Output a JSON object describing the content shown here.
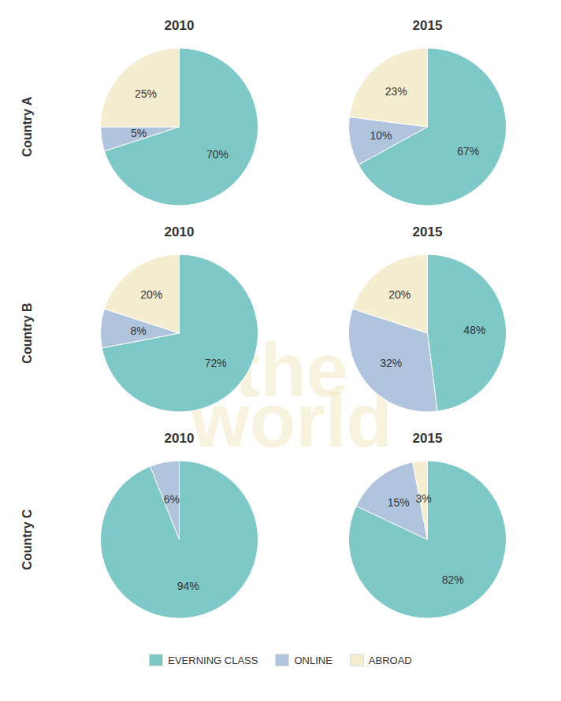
{
  "chart_data": [
    {
      "type": "pie",
      "title": "2010",
      "subtitle": "Country A",
      "categories": [
        "EVERNING CLASS",
        "ONLINE",
        "ABROAD"
      ],
      "values": [
        70,
        5,
        25
      ],
      "value_labels": [
        "70%",
        "5%",
        "25%"
      ],
      "colors": [
        "#7ec8c8",
        "#b0c4de",
        "#f5edd0"
      ],
      "legend": "bottom",
      "data_labels": true,
      "annotations": [
        "the",
        "world"
      ]
    },
    {
      "type": "pie",
      "title": "2015",
      "categories": [
        "EVERNING CLASS",
        "ONLINE",
        "ABROAD"
      ],
      "values": [
        67,
        10,
        23
      ],
      "value_labels": [
        "67%",
        "10%",
        "23%"
      ],
      "colors": [
        "#7ec8c8",
        "#b0c4de",
        "#f5edd0"
      ],
      "legend": "bottom",
      "data_labels": true
    },
    {
      "type": "pie",
      "title": "2010",
      "subtitle": "Country B",
      "categories": [
        "EVERNING CLASS",
        "ONLINE",
        "ABROAD"
      ],
      "values": [
        72,
        8,
        20
      ],
      "value_labels": [
        "72%",
        "8%",
        "20%"
      ],
      "colors": [
        "#7ec8c8",
        "#b0c4de",
        "#f5edd0"
      ],
      "legend": "bottom",
      "data_labels": true
    },
    {
      "type": "pie",
      "title": "2015",
      "categories": [
        "EVERNING CLASS",
        "ONLINE",
        "ABROAD"
      ],
      "values": [
        48,
        32,
        20
      ],
      "value_labels": [
        "48%",
        "32%",
        "20%"
      ],
      "colors": [
        "#7ec8c8",
        "#b0c4de",
        "#f5edd0"
      ],
      "legend": "bottom",
      "data_labels": true
    },
    {
      "type": "pie",
      "title": "2010",
      "subtitle": "Country C",
      "categories": [
        "EVERNING CLASS",
        "ONLINE"
      ],
      "values": [
        94,
        6
      ],
      "value_labels": [
        "94%",
        "6%"
      ],
      "colors": [
        "#7ec8c8",
        "#b0c4de"
      ],
      "legend": "bottom",
      "data_labels": true
    },
    {
      "type": "pie",
      "title": "2015",
      "categories": [
        "EVERNING CLASS",
        "ONLINE",
        "ABROAD"
      ],
      "values": [
        82,
        15,
        3
      ],
      "value_labels": [
        "82%",
        "15%",
        "3%"
      ],
      "colors": [
        "#7ec8c8",
        "#b0c4de",
        "#f5edd0"
      ],
      "legend": "bottom",
      "data_labels": true
    }
  ]
}
